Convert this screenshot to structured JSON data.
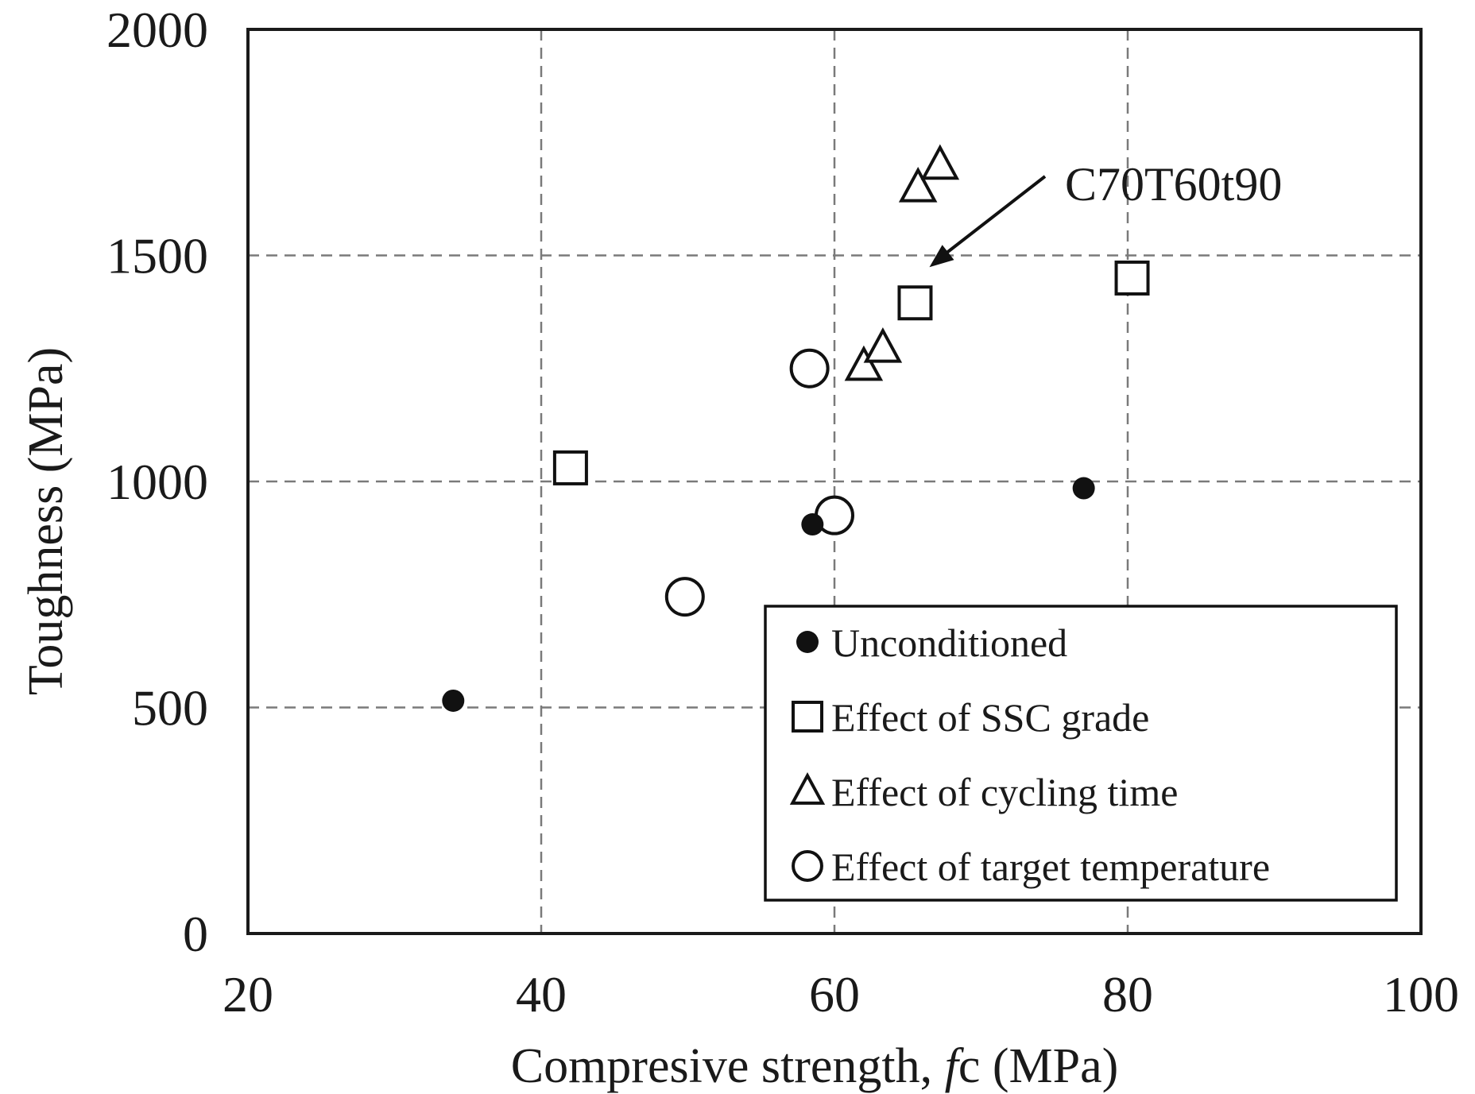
{
  "chart_data": {
    "type": "scatter",
    "xlabel": "Compresive strength, fc (MPa)",
    "xlabel_parts": {
      "before": "Compresive strength, ",
      "italic": "f",
      "after": "c (MPa)"
    },
    "ylabel": "Toughness (MPa)",
    "xlim": [
      20,
      100
    ],
    "ylim": [
      0,
      2000
    ],
    "xticks": [
      20,
      40,
      60,
      80,
      100
    ],
    "yticks": [
      0,
      500,
      1000,
      1500,
      2000
    ],
    "grid": true,
    "legend_position": "bottom-right",
    "series": [
      {
        "name": "Unconditioned",
        "marker": "filled-circle",
        "points": [
          [
            34,
            515
          ],
          [
            58.5,
            905
          ],
          [
            77,
            985
          ]
        ]
      },
      {
        "name": "Effect of SSC grade",
        "marker": "square",
        "points": [
          [
            42,
            1030
          ],
          [
            65.5,
            1395
          ],
          [
            80.3,
            1450
          ]
        ]
      },
      {
        "name": "Effect of cycling time",
        "marker": "triangle",
        "points": [
          [
            62,
            1255
          ],
          [
            63.3,
            1295
          ],
          [
            65.7,
            1650
          ],
          [
            67.2,
            1700
          ]
        ]
      },
      {
        "name": "Effect of target temperature",
        "marker": "open-circle",
        "points": [
          [
            49.8,
            745
          ],
          [
            58.3,
            1250
          ],
          [
            60,
            925
          ]
        ]
      }
    ],
    "annotations": [
      {
        "text": "C70T60t90",
        "point": [
          65.5,
          1395
        ]
      }
    ]
  }
}
